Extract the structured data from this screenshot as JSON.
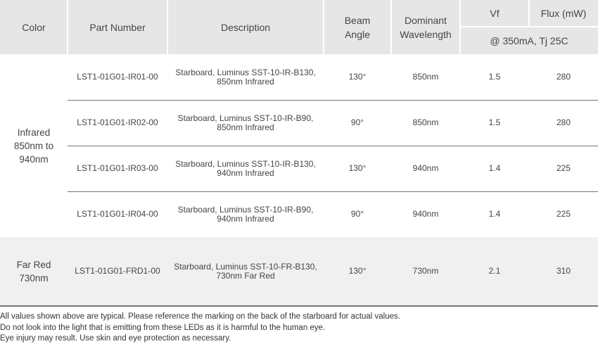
{
  "header": {
    "color": "Color",
    "part_number": "Part Number",
    "description": "Description",
    "beam_angle": "Beam Angle",
    "dominant_wavelength": "Dominant Wavelength",
    "vf": "Vf",
    "flux": "Flux (mW)",
    "conditions": "@ 350mA, Tj 25C"
  },
  "groups": [
    {
      "color": "Infrared 850nm to 940nm",
      "rows": [
        {
          "part": "LST1-01G01-IR01-00",
          "desc1": "Starboard, Luminus SST-10-IR-B130,",
          "desc2": "850nm Infrared",
          "beam": "130°",
          "wl": "850nm",
          "vf": "1.5",
          "flux": "280"
        },
        {
          "part": "LST1-01G01-IR02-00",
          "desc1": "Starboard, Luminus SST-10-IR-B90,",
          "desc2": "850nm Infrared",
          "beam": "90°",
          "wl": "850nm",
          "vf": "1.5",
          "flux": "280"
        },
        {
          "part": "LST1-01G01-IR03-00",
          "desc1": "Starboard, Luminus SST-10-IR-B130,",
          "desc2": "940nm Infrared",
          "beam": "130°",
          "wl": "940nm",
          "vf": "1.4",
          "flux": "225"
        },
        {
          "part": "LST1-01G01-IR04-00",
          "desc1": "Starboard, Luminus SST-10-IR-B90,",
          "desc2": "940nm Infrared",
          "beam": "90°",
          "wl": "940nm",
          "vf": "1.4",
          "flux": "225"
        }
      ]
    },
    {
      "color": "Far Red 730nm",
      "rows": [
        {
          "part": "LST1-01G01-FRD1-00",
          "desc1": "Starboard, Luminus SST-10-FR-B130,",
          "desc2": "730nm Far Red",
          "beam": "130°",
          "wl": "730nm",
          "vf": "2.1",
          "flux": "310"
        }
      ]
    }
  ],
  "footnotes": [
    "All values shown above are typical.  Please reference the marking on the back of the starboard for actual values.",
    "Do not look into the light that is emitting from these LEDs as it is harmful to the human eye.",
    "Eye injury may result.  Use skin and eye protection as necessary."
  ],
  "colors": {
    "header_bg": "#e6e6e6",
    "far_red_bg": "#f0f0f0",
    "rule": "#777777"
  }
}
